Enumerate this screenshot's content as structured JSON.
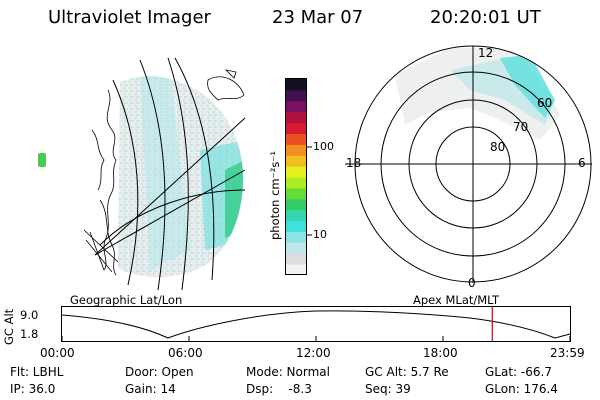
{
  "header": {
    "instrument": "Ultraviolet Imager",
    "date": "23 Mar 07",
    "time": "20:20:01 UT"
  },
  "colorbar": {
    "unit": "photon cm⁻²s⁻¹",
    "ticks": [
      {
        "label": "100",
        "value": 100
      },
      {
        "label": "10",
        "value": 10
      }
    ],
    "colors": [
      "#f2f2f2",
      "#dddddd",
      "#bfe7ea",
      "#8ee4e4",
      "#3fe0e0",
      "#33d6b0",
      "#33cc66",
      "#66dd33",
      "#aaee22",
      "#e6f020",
      "#f0c020",
      "#f09020",
      "#e85020",
      "#d81830",
      "#b01040",
      "#7a1060",
      "#401050",
      "#101020"
    ]
  },
  "polar": {
    "mlt_labels": {
      "top": "12",
      "left": "18",
      "right": "6",
      "bottom": "0"
    },
    "lat_labels": [
      "60",
      "70",
      "80"
    ]
  },
  "map_labels": {
    "left": "Geographic Lat/Lon",
    "right": "Apex MLat/MLT"
  },
  "altitude_plot": {
    "ylabel": "GC Alt",
    "y_ticks": [
      "9.0",
      "1.8"
    ],
    "x_ticks": [
      "00:00",
      "06:00",
      "12:00",
      "18:00",
      "23:59"
    ],
    "marker_hour": 20.33,
    "marker_color": "#e01010"
  },
  "footer": {
    "col1": [
      "Flt: LBHL",
      "IP: 36.0"
    ],
    "col2": [
      "Door: Open",
      "Gain: 14"
    ],
    "col3": [
      "Mode: Normal",
      "Dsp:    -8.3"
    ],
    "col4": [
      "GC Alt: 5.7 Re",
      "Seq: 39"
    ],
    "col5": [
      "GLat: -66.7",
      "GLon: 176.4"
    ]
  }
}
